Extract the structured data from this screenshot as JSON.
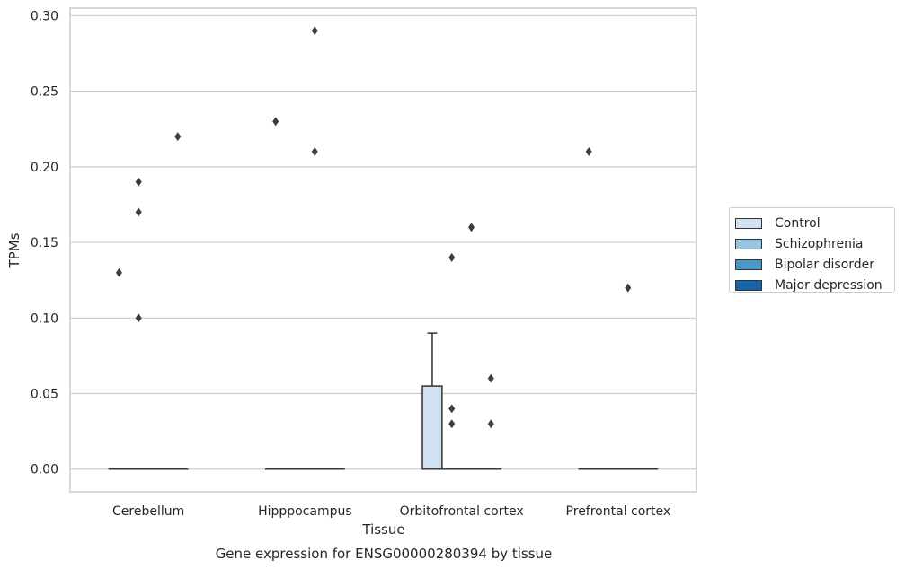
{
  "chart_data": {
    "type": "box",
    "title": "Gene expression for ENSG00000280394 by tissue",
    "xlabel": "Tissue",
    "ylabel": "TPMs",
    "ylim": [
      -0.015,
      0.305
    ],
    "yticks": [
      "0.00",
      "0.05",
      "0.10",
      "0.15",
      "0.20",
      "0.25",
      "0.30"
    ],
    "categories": [
      "Cerebellum",
      "Hipppocampus",
      "Orbitofrontal cortex",
      "Prefrontal cortex"
    ],
    "grid": true,
    "legend_position": "right",
    "series": [
      {
        "name": "Control",
        "color": "#d0e1f2",
        "boxes": [
          {
            "q1": 0,
            "median": 0,
            "q3": 0,
            "whisker_low": 0,
            "whisker_high": 0,
            "outliers": [
              0.13
            ]
          },
          {
            "q1": 0,
            "median": 0,
            "q3": 0,
            "whisker_low": 0,
            "whisker_high": 0,
            "outliers": [
              0.23
            ]
          },
          {
            "q1": 0,
            "median": 0,
            "q3": 0.055,
            "whisker_low": 0,
            "whisker_high": 0.09,
            "outliers": []
          },
          {
            "q1": 0,
            "median": 0,
            "q3": 0,
            "whisker_low": 0,
            "whisker_high": 0,
            "outliers": [
              0.21
            ]
          }
        ]
      },
      {
        "name": "Schizophrenia",
        "color": "#94c4df",
        "boxes": [
          {
            "q1": 0,
            "median": 0,
            "q3": 0,
            "whisker_low": 0,
            "whisker_high": 0,
            "outliers": [
              0.1,
              0.17,
              0.19
            ]
          },
          {
            "q1": 0,
            "median": 0,
            "q3": 0,
            "whisker_low": 0,
            "whisker_high": 0,
            "outliers": []
          },
          {
            "q1": 0,
            "median": 0,
            "q3": 0,
            "whisker_low": 0,
            "whisker_high": 0,
            "outliers": [
              0.03,
              0.04,
              0.14
            ]
          },
          {
            "q1": 0,
            "median": 0,
            "q3": 0,
            "whisker_low": 0,
            "whisker_high": 0,
            "outliers": []
          }
        ]
      },
      {
        "name": "Bipolar disorder",
        "color": "#4a98c9",
        "boxes": [
          {
            "q1": 0,
            "median": 0,
            "q3": 0,
            "whisker_low": 0,
            "whisker_high": 0,
            "outliers": []
          },
          {
            "q1": 0,
            "median": 0,
            "q3": 0,
            "whisker_low": 0,
            "whisker_high": 0,
            "outliers": [
              0.21,
              0.29
            ]
          },
          {
            "q1": 0,
            "median": 0,
            "q3": 0,
            "whisker_low": 0,
            "whisker_high": 0,
            "outliers": [
              0.16
            ]
          },
          {
            "q1": 0,
            "median": 0,
            "q3": 0,
            "whisker_low": 0,
            "whisker_high": 0,
            "outliers": [
              0.12
            ]
          }
        ]
      },
      {
        "name": "Major depression",
        "color": "#1764ab",
        "boxes": [
          {
            "q1": 0,
            "median": 0,
            "q3": 0,
            "whisker_low": 0,
            "whisker_high": 0,
            "outliers": [
              0.22
            ]
          },
          {
            "q1": 0,
            "median": 0,
            "q3": 0,
            "whisker_low": 0,
            "whisker_high": 0,
            "outliers": []
          },
          {
            "q1": 0,
            "median": 0,
            "q3": 0,
            "whisker_low": 0,
            "whisker_high": 0,
            "outliers": [
              0.03,
              0.06
            ]
          },
          {
            "q1": 0,
            "median": 0,
            "q3": 0,
            "whisker_low": 0,
            "whisker_high": 0,
            "outliers": []
          }
        ]
      }
    ]
  }
}
